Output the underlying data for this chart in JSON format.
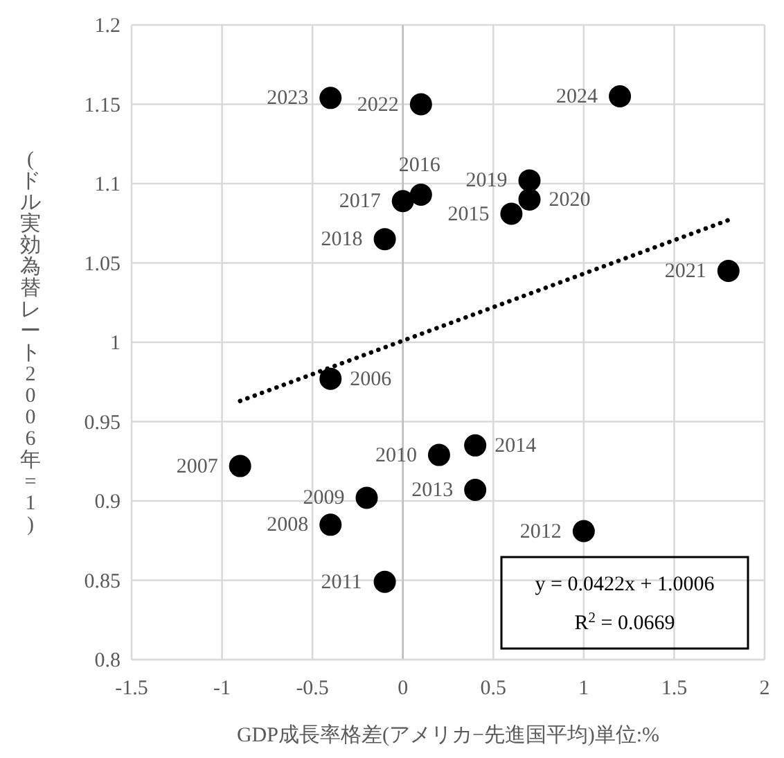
{
  "chart_data": {
    "type": "scatter",
    "xlabel": "GDP成長率格差(アメリカ−先進国平均)単位:%",
    "ylabel": "(ドル実効為替レート2006年=1)",
    "x": [
      -0.4,
      -0.9,
      -0.4,
      -0.2,
      0.2,
      -0.1,
      1.0,
      0.4,
      0.4,
      0.6,
      0.1,
      0.0,
      -0.1,
      0.7,
      0.7,
      1.8,
      0.1,
      -0.4,
      1.2
    ],
    "series": [
      {
        "color": "#000000",
        "marker": "circle",
        "values": [
          0.977,
          0.922,
          0.885,
          0.902,
          0.929,
          0.849,
          0.881,
          0.907,
          0.935,
          1.081,
          1.093,
          1.089,
          1.065,
          1.102,
          1.09,
          1.045,
          1.15,
          1.154,
          1.155
        ]
      },
      {
        "type": "line",
        "color": "#000000",
        "line_style": "dotted",
        "marker": "none",
        "x": [
          -0.9,
          1.8
        ],
        "values": [
          0.963,
          1.077
        ]
      }
    ],
    "xlim": [
      -1.5,
      2
    ],
    "xticks": [
      -1.5,
      -1,
      -0.5,
      0,
      0.5,
      1,
      1.5,
      2
    ],
    "ylim": [
      0.8,
      1.2
    ],
    "yticks": [
      0.8,
      0.85,
      0.9,
      0.95,
      1,
      1.05,
      1.1,
      1.15,
      1.2
    ],
    "grid": true,
    "annotations": [
      {
        "text": "2006",
        "x": -0.4,
        "y": 0.977
      },
      {
        "text": "2007",
        "x": -0.9,
        "y": 0.922
      },
      {
        "text": "2008",
        "x": -0.4,
        "y": 0.885
      },
      {
        "text": "2009",
        "x": -0.2,
        "y": 0.902
      },
      {
        "text": "2010",
        "x": 0.2,
        "y": 0.929
      },
      {
        "text": "2011",
        "x": -0.1,
        "y": 0.849
      },
      {
        "text": "2012",
        "x": 1.0,
        "y": 0.881
      },
      {
        "text": "2013",
        "x": 0.4,
        "y": 0.907
      },
      {
        "text": "2014",
        "x": 0.4,
        "y": 0.935
      },
      {
        "text": "2015",
        "x": 0.6,
        "y": 1.081
      },
      {
        "text": "2016",
        "x": 0.1,
        "y": 1.093
      },
      {
        "text": "2017",
        "x": 0.0,
        "y": 1.089
      },
      {
        "text": "2018",
        "x": -0.1,
        "y": 1.065
      },
      {
        "text": "2019",
        "x": 0.7,
        "y": 1.102
      },
      {
        "text": "2020",
        "x": 0.7,
        "y": 1.09
      },
      {
        "text": "2021",
        "x": 1.8,
        "y": 1.045
      },
      {
        "text": "2022",
        "x": 0.1,
        "y": 1.15
      },
      {
        "text": "2023",
        "x": -0.4,
        "y": 1.154
      },
      {
        "text": "2024",
        "x": 1.2,
        "y": 1.155
      },
      "y = 0.0422x + 1.0006",
      "R$^{2}$ = 0.0669"
    ]
  }
}
